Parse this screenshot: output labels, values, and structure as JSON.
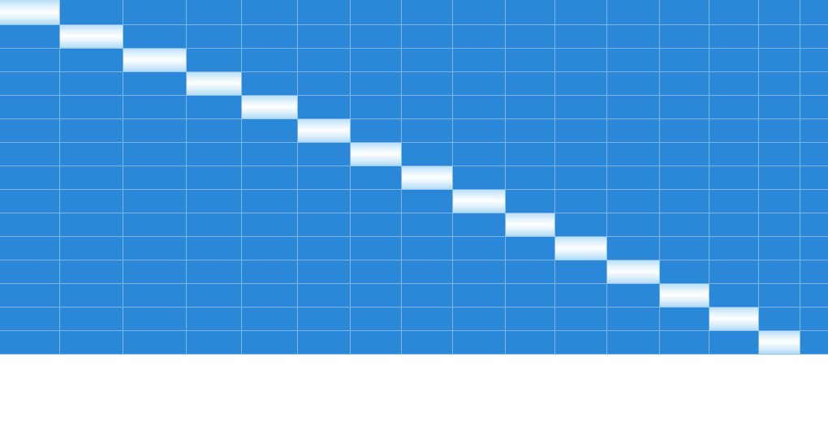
{
  "colors": {
    "cell_background": "#2b88d8",
    "cell_border": "#7fb4e4",
    "selected_highlight": "#dff1fc",
    "page_background": "#ffffff"
  },
  "grid": {
    "rows": 15,
    "columns": 16,
    "selected_cells": [
      {
        "row": 0,
        "col": 0
      },
      {
        "row": 1,
        "col": 1
      },
      {
        "row": 2,
        "col": 2
      },
      {
        "row": 3,
        "col": 3
      },
      {
        "row": 4,
        "col": 4
      },
      {
        "row": 5,
        "col": 5
      },
      {
        "row": 6,
        "col": 6
      },
      {
        "row": 7,
        "col": 7
      },
      {
        "row": 8,
        "col": 8
      },
      {
        "row": 9,
        "col": 9
      },
      {
        "row": 10,
        "col": 10
      },
      {
        "row": 11,
        "col": 11
      },
      {
        "row": 12,
        "col": 12
      },
      {
        "row": 13,
        "col": 13
      },
      {
        "row": 14,
        "col": 14
      }
    ]
  }
}
